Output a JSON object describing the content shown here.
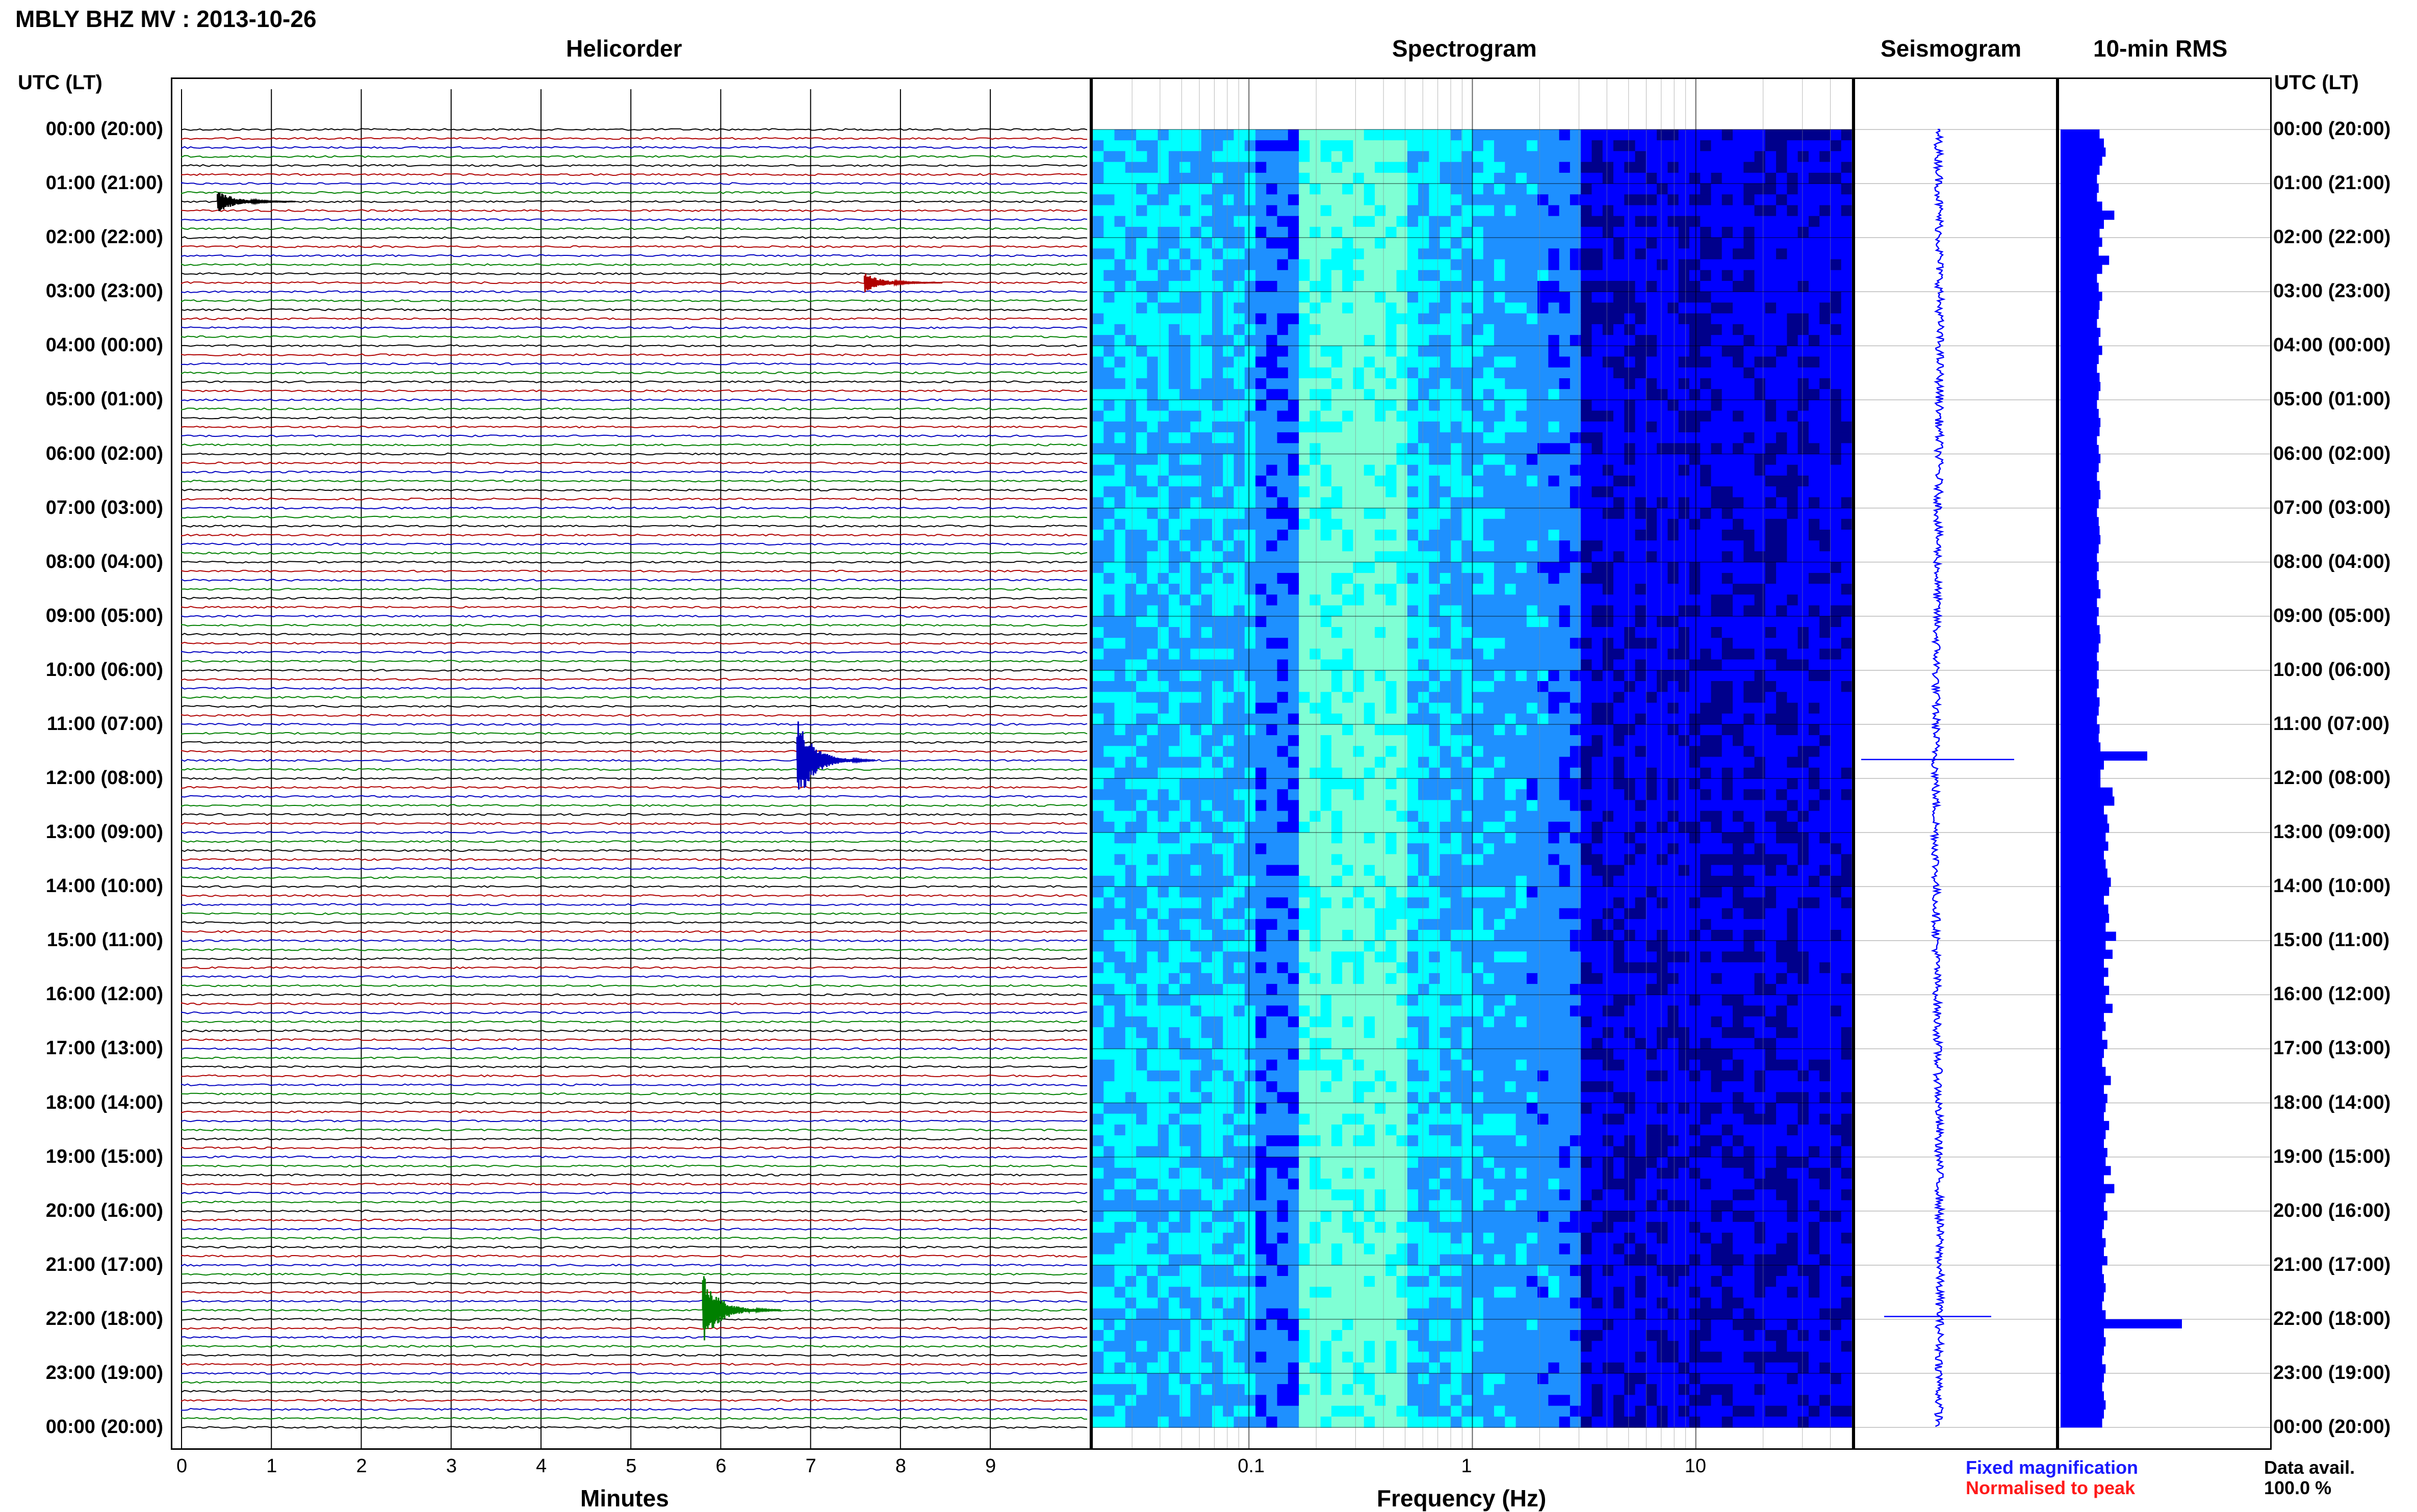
{
  "title": "MBLY BHZ MV : 2013-10-26",
  "panels": {
    "helicorder": "Helicorder",
    "spectrogram": "Spectrogram",
    "seismogram": "Seismogram",
    "rms": "10-min RMS"
  },
  "utc_header": "UTC (LT)",
  "time_labels": [
    "00:00 (20:00)",
    "01:00 (21:00)",
    "02:00 (22:00)",
    "03:00 (23:00)",
    "04:00 (00:00)",
    "05:00 (01:00)",
    "06:00 (02:00)",
    "07:00 (03:00)",
    "08:00 (04:00)",
    "09:00 (05:00)",
    "10:00 (06:00)",
    "11:00 (07:00)",
    "12:00 (08:00)",
    "13:00 (09:00)",
    "14:00 (10:00)",
    "15:00 (11:00)",
    "16:00 (12:00)",
    "17:00 (13:00)",
    "18:00 (14:00)",
    "19:00 (15:00)",
    "20:00 (16:00)",
    "21:00 (17:00)",
    "22:00 (18:00)",
    "23:00 (19:00)",
    "00:00 (20:00)"
  ],
  "legend": {
    "fixed": "Fixed magnification",
    "normalised": "Normalised to peak",
    "fixed_color": "#1a1aff",
    "normalised_color": "#ff1a1a"
  },
  "data_avail": {
    "label": "Data avail.",
    "value": "100.0 %"
  },
  "chart_data": [
    {
      "type": "line",
      "panel": "Helicorder",
      "xlabel": "Minutes",
      "x_ticks": [
        "0",
        "1",
        "2",
        "3",
        "4",
        "5",
        "6",
        "7",
        "8",
        "9"
      ],
      "xlim": [
        0,
        10
      ],
      "rows_per_hour": 6,
      "trace_colors": [
        "#000000",
        "#b00000",
        "#0000c0",
        "#008000"
      ],
      "events": [
        {
          "hour": 1.3,
          "minute": 0.4,
          "amplitude": 0.6
        },
        {
          "hour": 2.75,
          "minute": 7.6,
          "amplitude": 0.5
        },
        {
          "hour": 11.6,
          "minute": 6.85,
          "amplitude": 2.2
        },
        {
          "hour": 21.9,
          "minute": 5.8,
          "amplitude": 1.8
        }
      ]
    },
    {
      "type": "heatmap",
      "panel": "Spectrogram",
      "xlabel": "Frequency (Hz)",
      "x_scale": "log",
      "x_ticks": [
        "0.1",
        "1",
        "10"
      ],
      "xlim": [
        0.02,
        50
      ],
      "colormap": [
        "#00008b",
        "#0000ff",
        "#1e90ff",
        "#00ffff",
        "#7fffd4",
        "#adff2f"
      ],
      "dominant_band_hz": [
        0.15,
        0.4
      ]
    },
    {
      "type": "line",
      "panel": "Seismogram",
      "spikes": [
        {
          "hour": 11.65,
          "amplitude": 1.0
        },
        {
          "hour": 21.95,
          "amplitude": 0.7
        }
      ]
    },
    {
      "type": "bar",
      "panel": "10-min RMS",
      "orientation": "horizontal",
      "interval_minutes": 10,
      "bar_color": "#0000ff",
      "values": [
        0.45,
        0.5,
        0.52,
        0.48,
        0.45,
        0.42,
        0.44,
        0.42,
        0.48,
        0.62,
        0.5,
        0.45,
        0.48,
        0.44,
        0.56,
        0.48,
        0.42,
        0.44,
        0.48,
        0.45,
        0.44,
        0.42,
        0.46,
        0.44,
        0.48,
        0.44,
        0.42,
        0.45,
        0.46,
        0.44,
        0.42,
        0.44,
        0.46,
        0.45,
        0.42,
        0.44,
        0.46,
        0.44,
        0.42,
        0.45,
        0.46,
        0.44,
        0.42,
        0.44,
        0.45,
        0.46,
        0.44,
        0.42,
        0.44,
        0.42,
        0.44,
        0.46,
        0.42,
        0.44,
        0.42,
        0.45,
        0.46,
        0.44,
        0.42,
        0.44,
        0.42,
        0.44,
        0.42,
        0.45,
        0.44,
        0.42,
        0.45,
        0.44,
        0.46,
        1.0,
        0.5,
        0.46,
        0.46,
        0.6,
        0.62,
        0.5,
        0.54,
        0.56,
        0.52,
        0.55,
        0.5,
        0.52,
        0.54,
        0.58,
        0.56,
        0.5,
        0.55,
        0.56,
        0.52,
        0.64,
        0.52,
        0.6,
        0.5,
        0.55,
        0.5,
        0.56,
        0.52,
        0.6,
        0.5,
        0.52,
        0.48,
        0.54,
        0.5,
        0.48,
        0.52,
        0.58,
        0.5,
        0.54,
        0.52,
        0.5,
        0.56,
        0.52,
        0.5,
        0.54,
        0.52,
        0.58,
        0.5,
        0.62,
        0.52,
        0.5,
        0.54,
        0.5,
        0.48,
        0.52,
        0.5,
        0.54,
        0.48,
        0.5,
        0.52,
        0.5,
        0.48,
        0.52,
        1.4,
        0.5,
        0.52,
        0.5,
        0.48,
        0.52,
        0.5,
        0.48,
        0.5,
        0.52,
        0.5,
        0.48
      ]
    }
  ]
}
